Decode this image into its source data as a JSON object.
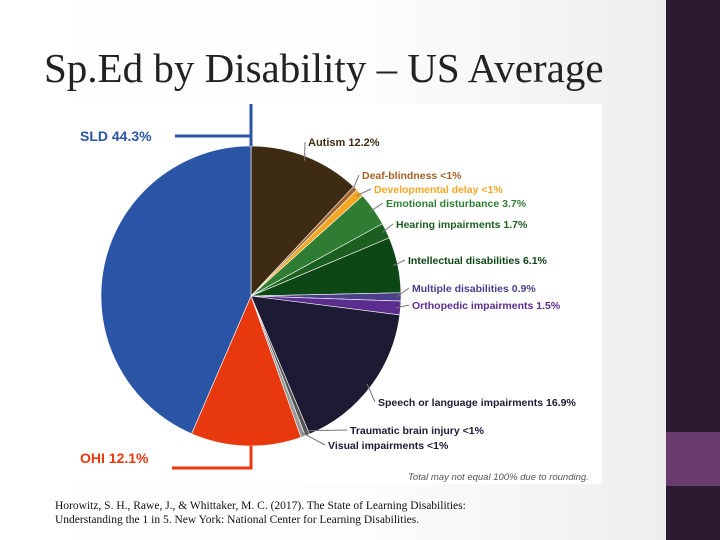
{
  "slide": {
    "title": "Sp.Ed by Disability – US Average",
    "citation_line1": "Horowitz, S. H., Rawe, J., & Whittaker, M. C. (2017). The State of Learning Disabilities:",
    "citation_line2": "Understanding the 1 in 5. New York: National Center for Learning Disabilities."
  },
  "colors": {
    "side_panel": "#2b1a30",
    "side_accent": "#6a3b6e"
  },
  "chart_data": {
    "type": "pie",
    "note": "Total may not equal 100% due to rounding.",
    "slices": [
      {
        "label": "Autism 12.2%",
        "value": 12.2,
        "color": "#3e2b14",
        "text_color": "#3e2b14"
      },
      {
        "label": "Deaf-blindness <1%",
        "value": 0.5,
        "color": "#a4612a",
        "text_color": "#a4612a"
      },
      {
        "label": "Developmental delay <1%",
        "value": 0.9,
        "color": "#f5a623",
        "text_color": "#f5a623"
      },
      {
        "label": "Emotional disturbance 3.7%",
        "value": 3.7,
        "color": "#2e7d32",
        "text_color": "#2e7d32"
      },
      {
        "label": "Hearing impairments 1.7%",
        "value": 1.7,
        "color": "#1b5e20",
        "text_color": "#1b5e20"
      },
      {
        "label": "Intellectual disabilities 6.1%",
        "value": 6.1,
        "color": "#0d4716",
        "text_color": "#0d4716"
      },
      {
        "label": "Multiple disabilities 0.9%",
        "value": 0.9,
        "color": "#4a3f8a",
        "text_color": "#4a3f8a"
      },
      {
        "label": "Orthopedic impairments 1.5%",
        "value": 1.5,
        "color": "#5b2d8e",
        "text_color": "#5b2d8e"
      },
      {
        "label": "Speech or language impairments 16.9%",
        "value": 16.9,
        "color": "#1d1a33",
        "text_color": "#1d1a33"
      },
      {
        "label": "Traumatic brain injury <1%",
        "value": 0.5,
        "color": "#555555",
        "text_color": "#1d1a33"
      },
      {
        "label": "Visual impairments <1%",
        "value": 0.5,
        "color": "#9a9a9a",
        "text_color": "#1d1a33"
      },
      {
        "label": "OHI 12.1%",
        "value": 12.1,
        "color": "#e8380d",
        "text_color": "#e8380d"
      },
      {
        "label": "SLD 44.3%",
        "value": 44.3,
        "color": "#2a54a5",
        "text_color": "#2a54a5"
      }
    ]
  }
}
